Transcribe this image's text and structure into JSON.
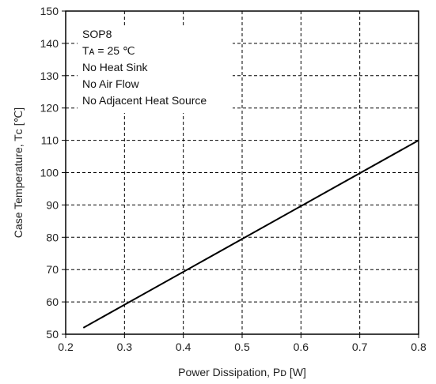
{
  "chart_data": {
    "type": "line",
    "xlabel": "Power Dissipation, Pᴅ [W]",
    "ylabel": "Case Temperature, Tᴄ [℃]",
    "xlim": [
      0.2,
      0.8
    ],
    "ylim": [
      50,
      150
    ],
    "x_ticks": [
      "0.2",
      "0.3",
      "0.4",
      "0.5",
      "0.6",
      "0.7",
      "0.8"
    ],
    "y_ticks": [
      "50",
      "60",
      "70",
      "80",
      "90",
      "100",
      "110",
      "120",
      "130",
      "140",
      "150"
    ],
    "grid": true,
    "grid_style": "dashed",
    "series": [
      {
        "color": "#000000",
        "points": [
          [
            0.23,
            52
          ],
          [
            0.8,
            110
          ]
        ]
      }
    ],
    "annotations": [
      "SOP8",
      "Tᴀ = 25 ℃",
      "No Heat Sink",
      "No Air Flow",
      "No Adjacent Heat Source"
    ]
  }
}
